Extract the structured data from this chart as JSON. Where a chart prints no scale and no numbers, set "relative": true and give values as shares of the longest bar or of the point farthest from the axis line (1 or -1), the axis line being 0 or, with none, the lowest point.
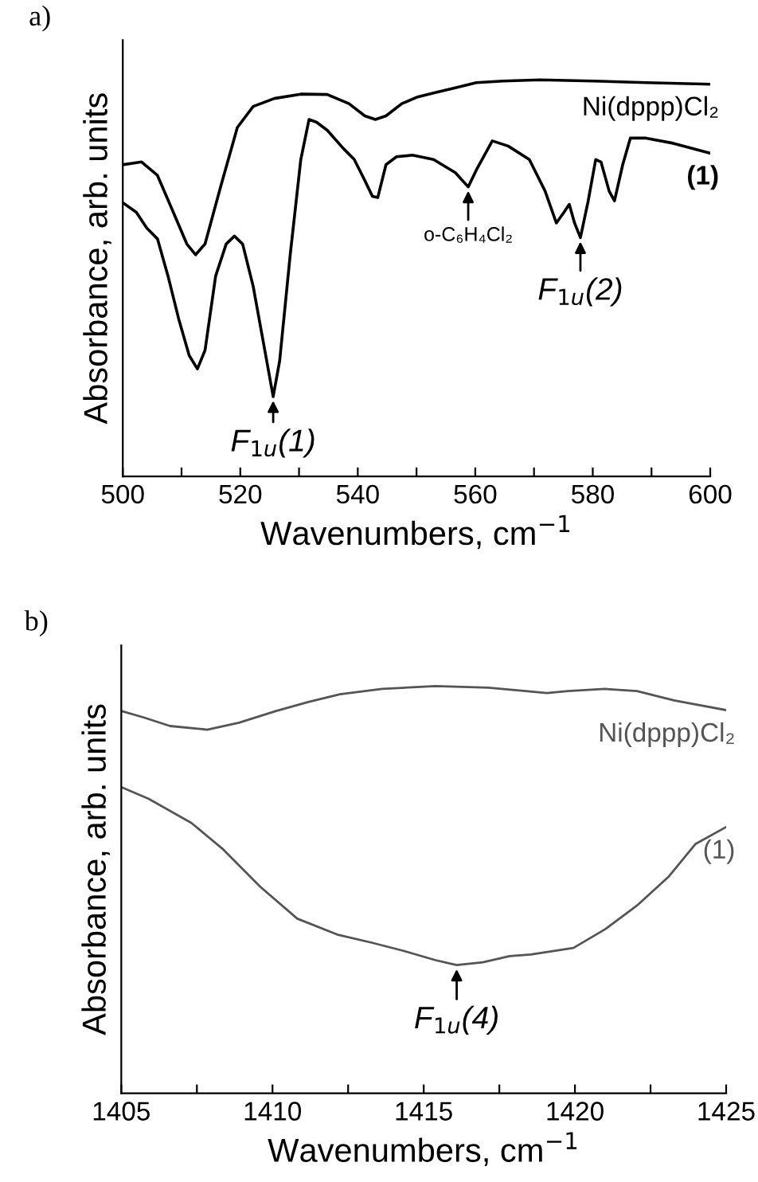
{
  "chart_data": [
    {
      "type": "line",
      "title": "a)",
      "xlabel": "Wavenumbers, cm$^{−1}$",
      "ylabel": "Absorbance, arb. units",
      "relative": true,
      "grid": false,
      "legend": false,
      "marker": "none",
      "line_style": "solid",
      "xlim": [
        500,
        600
      ],
      "xticks": [
        500,
        {
          "value": 510,
          "label": null
        },
        520,
        {
          "value": 530,
          "label": null
        },
        540,
        {
          "value": 550,
          "label": null
        },
        560,
        {
          "value": 570,
          "label": null
        },
        580,
        {
          "value": 590,
          "label": null
        },
        600
      ],
      "series": [
        {
          "name": "Ni(dppp)Cl₂",
          "color": "#000000",
          "x": [
            500,
            503.2,
            505.9,
            508.6,
            510.9,
            512.4,
            514.0,
            516.7,
            519.5,
            522.2,
            525.8,
            530.3,
            534.8,
            538.5,
            541.2,
            543.0,
            544.8,
            547.5,
            550.2,
            552.9,
            556.6,
            560.2,
            564.7,
            571.0,
            580.1,
            589.1,
            600
          ],
          "values": [
            0.786,
            0.793,
            0.759,
            0.666,
            0.586,
            0.559,
            0.586,
            0.733,
            0.88,
            0.933,
            0.953,
            0.964,
            0.963,
            0.94,
            0.909,
            0.9,
            0.909,
            0.94,
            0.957,
            0.967,
            0.98,
            0.993,
            0.997,
            1.0,
            0.997,
            0.993,
            0.989
          ]
        },
        {
          "name": "(1)",
          "color": "#000000",
          "x": [
            500,
            502.3,
            504.1,
            505.9,
            507.7,
            509.5,
            511.3,
            512.7,
            514.0,
            515.8,
            517.6,
            519.0,
            520.4,
            522.2,
            524.0,
            525.6,
            526.7,
            528.5,
            530.3,
            531.7,
            533.0,
            534.8,
            537.6,
            539.4,
            541.2,
            542.5,
            543.4,
            544.8,
            546.6,
            549.3,
            552.9,
            556.6,
            558.8,
            560.2,
            562.9,
            565.6,
            569.2,
            571.9,
            573.8,
            575.1,
            576.0,
            576.9,
            577.9,
            579.2,
            580.5,
            581.4,
            582.8,
            583.7,
            585.1,
            586.4,
            589.1,
            593.7,
            600
          ],
          "values": [
            0.69,
            0.666,
            0.626,
            0.599,
            0.505,
            0.398,
            0.305,
            0.271,
            0.318,
            0.505,
            0.586,
            0.606,
            0.586,
            0.479,
            0.332,
            0.201,
            0.291,
            0.559,
            0.799,
            0.9,
            0.893,
            0.873,
            0.826,
            0.799,
            0.746,
            0.706,
            0.703,
            0.786,
            0.806,
            0.81,
            0.799,
            0.766,
            0.73,
            0.773,
            0.846,
            0.833,
            0.799,
            0.719,
            0.639,
            0.666,
            0.686,
            0.639,
            0.602,
            0.693,
            0.799,
            0.793,
            0.719,
            0.695,
            0.786,
            0.853,
            0.853,
            0.84,
            0.815
          ]
        }
      ],
      "annotations": [
        {
          "text": "F$_{1u}$(1)",
          "x": 525.6,
          "y": 0.201
        },
        {
          "text": "o-C₆H₄Cl₂",
          "x": 558.8,
          "y": 0.73
        },
        {
          "text": "F$_{1u}$(2)",
          "x": 577.9,
          "y": 0.602
        }
      ]
    },
    {
      "type": "line",
      "title": "b)",
      "xlabel": "Wavenumbers, cm$^{−1}$",
      "ylabel": "Absorbance, arb. units",
      "relative": true,
      "grid": false,
      "legend": false,
      "marker": "none",
      "line_style": "solid",
      "xlim": [
        1405,
        1425
      ],
      "xticks": [
        1405,
        {
          "value": 1407.5,
          "label": null
        },
        1410,
        {
          "value": 1412.5,
          "label": null
        },
        1415,
        {
          "value": 1417.5,
          "label": null
        },
        1420,
        {
          "value": 1422.5,
          "label": null
        },
        1425
      ],
      "series": [
        {
          "name": "Ni(dppp)Cl₂",
          "color": "#555555",
          "x": [
            1405,
            1405.74,
            1406.61,
            1407.84,
            1408.89,
            1410.12,
            1411.18,
            1412.23,
            1413.63,
            1415.39,
            1417.14,
            1418.37,
            1419.07,
            1419.77,
            1421.0,
            1422.05,
            1423.28,
            1425
          ],
          "values": [
            0.939,
            0.923,
            0.902,
            0.893,
            0.91,
            0.939,
            0.961,
            0.98,
            0.993,
            1.0,
            0.996,
            0.988,
            0.983,
            0.988,
            0.993,
            0.988,
            0.965,
            0.941
          ]
        },
        {
          "name": "(1)",
          "color": "#555555",
          "x": [
            1405,
            1405.91,
            1407.32,
            1408.37,
            1409.6,
            1410.82,
            1412.14,
            1413.28,
            1414.33,
            1415.39,
            1416.09,
            1416.96,
            1417.84,
            1418.54,
            1419.95,
            1421.0,
            1422.05,
            1423.11,
            1423.98,
            1425
          ],
          "values": [
            0.752,
            0.723,
            0.664,
            0.599,
            0.507,
            0.429,
            0.39,
            0.37,
            0.35,
            0.327,
            0.315,
            0.322,
            0.337,
            0.341,
            0.357,
            0.403,
            0.461,
            0.533,
            0.612,
            0.654
          ]
        }
      ],
      "annotations": [
        {
          "text": "F$_{1u}$(4)",
          "x": 1416.09,
          "y": 0.315
        }
      ]
    }
  ]
}
